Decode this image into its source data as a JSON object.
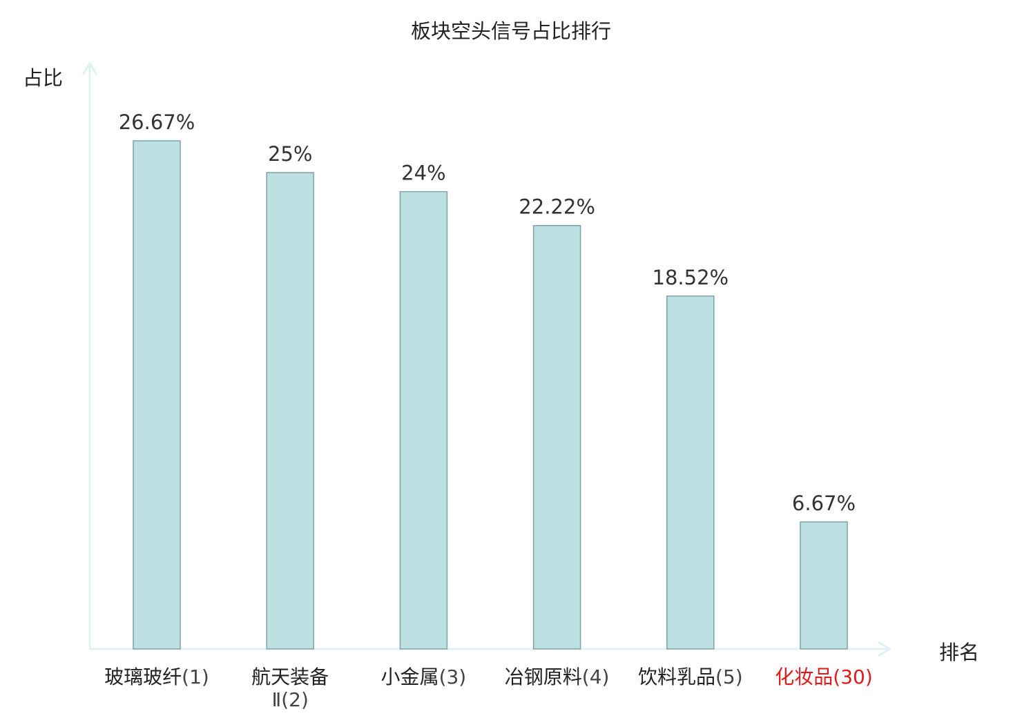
{
  "chart_data": {
    "type": "bar",
    "title": "板块空头信号占比排行",
    "ylabel": "占比",
    "xlabel": "排名",
    "ylim": [
      0,
      30
    ],
    "grid": false,
    "categories": [
      {
        "name": "玻璃玻纤",
        "rank": "(1)",
        "highlight": false
      },
      {
        "name": "航天装备",
        "rank": "Ⅱ(2)",
        "highlight": false
      },
      {
        "name": "小金属",
        "rank": "(3)",
        "highlight": false
      },
      {
        "name": "冶钢原料",
        "rank": "(4)",
        "highlight": false
      },
      {
        "name": "饮料乳品",
        "rank": "(5)",
        "highlight": false
      },
      {
        "name": "化妆品",
        "rank": "(30)",
        "highlight": true
      }
    ],
    "values": [
      26.67,
      25,
      24,
      22.22,
      18.52,
      6.67
    ],
    "value_labels": [
      "26.67%",
      "25%",
      "24%",
      "22.22%",
      "18.52%",
      "6.67%"
    ],
    "colors": {
      "bar_fill": "#bde1e3",
      "bar_stroke": "#7fa3a5",
      "axis": "#e0f2f1",
      "highlight": "#e31a1c"
    }
  }
}
